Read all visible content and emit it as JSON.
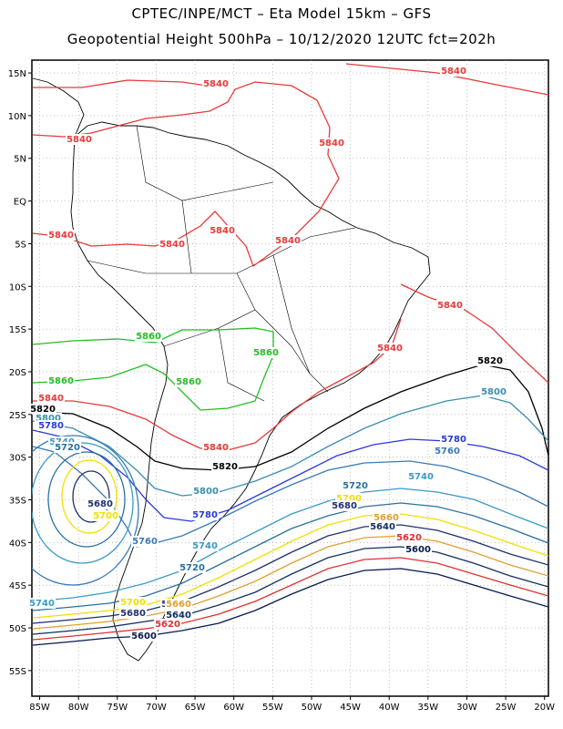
{
  "header": {
    "line1": "CPTEC/INPE/MCT –  Eta Model 15km – GFS",
    "line2": "Geopotential Height 500hPa – 10/12/2020 12UTC fct=202h"
  },
  "axes": {
    "lon_labels": [
      "85W",
      "80W",
      "75W",
      "70W",
      "65W",
      "60W",
      "55W",
      "50W",
      "45W",
      "40W",
      "35W",
      "30W",
      "25W",
      "20W"
    ],
    "lat_labels": [
      "15N",
      "10N",
      "5N",
      "EQ",
      "5S",
      "10S",
      "15S",
      "20S",
      "25S",
      "30S",
      "35S",
      "40S",
      "45S",
      "50S",
      "55S"
    ]
  },
  "map": {
    "lon_range": [
      -86,
      -19.5
    ],
    "lat_range": [
      -58,
      16.5
    ],
    "grid": "dotted"
  },
  "contours": [
    {
      "value": "5840",
      "color": "#e83a3a"
    },
    {
      "value": "5860",
      "color": "#22c022"
    },
    {
      "value": "5820",
      "color": "#000000"
    },
    {
      "value": "5800",
      "color": "#3a8fb0"
    },
    {
      "value": "5780",
      "color": "#2a3ad8"
    },
    {
      "value": "5760",
      "color": "#3a7ab8"
    },
    {
      "value": "5740",
      "color": "#3a9ac8"
    },
    {
      "value": "5720",
      "color": "#2a70a0"
    },
    {
      "value": "5700",
      "color": "#f0e000"
    },
    {
      "value": "5680",
      "color": "#203070"
    },
    {
      "value": "5660",
      "color": "#e0a030"
    },
    {
      "value": "5640",
      "color": "#103060"
    },
    {
      "value": "5620",
      "color": "#e03030"
    },
    {
      "value": "5600",
      "color": "#081850"
    }
  ]
}
